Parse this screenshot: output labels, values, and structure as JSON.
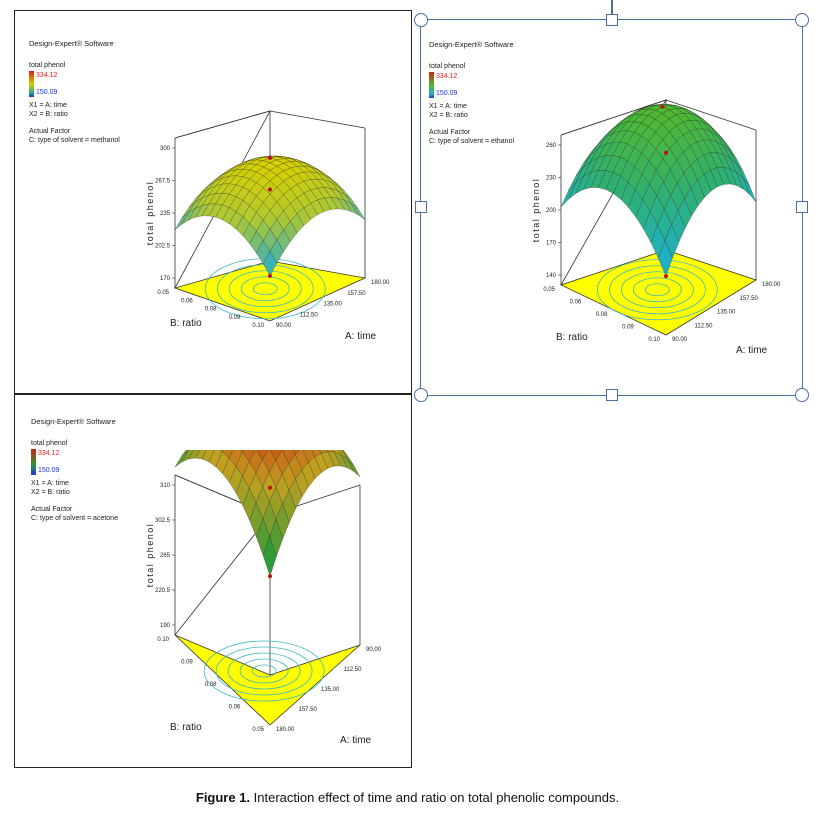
{
  "caption": {
    "label": "Figure 1.",
    "text": " Interaction effect of time and ratio on total phenolic compounds."
  },
  "charts": [
    {
      "software": "Design-Expert® Software",
      "legend_title": "total phenol",
      "legend_high": "334.12",
      "legend_low": "150.09",
      "x1": "X1 = A: time",
      "x2": "X2 = B: ratio",
      "actual_factor": "Actual Factor",
      "factor_value": "C: type of solvent = methanol",
      "zlabel": "total phenol",
      "xlabel": "A: time",
      "ylabel": "B: ratio",
      "colors": [
        "#3ab0b8",
        "#b0c830",
        "#d8d000"
      ]
    },
    {
      "software": "Design-Expert® Software",
      "legend_title": "total phenol",
      "legend_high": "334.12",
      "legend_low": "150.09",
      "x1": "X1 = A: time",
      "x2": "X2 = B: ratio",
      "actual_factor": "Actual Factor",
      "factor_value": "C: type of solvent = ethanol",
      "zlabel": "total phenol",
      "xlabel": "A: time",
      "ylabel": "B: ratio",
      "colors": [
        "#1fb0c8",
        "#30b070",
        "#50b830"
      ]
    },
    {
      "software": "Design-Expert® Software",
      "legend_title": "total phenol",
      "legend_high": "334.12",
      "legend_low": "150.09",
      "x1": "X1 = A: time",
      "x2": "X2 = B: ratio",
      "actual_factor": "Actual Factor",
      "factor_value": "C: type of solvent = acetone",
      "zlabel": "total phenol",
      "xlabel": "A: time",
      "ylabel": "B: ratio",
      "colors": [
        "#2a9a3a",
        "#c0a020",
        "#d01a10"
      ]
    }
  ],
  "chart_data": [
    {
      "type": "surface",
      "z_ticks": [
        "170",
        "202.5",
        "235",
        "267.5",
        "300"
      ],
      "x_ticks": [
        "90.00",
        "112.50",
        "135.00",
        "157.50",
        "180.00"
      ],
      "y_ticks": [
        "0.05",
        "0.06",
        "0.08",
        "0.09",
        "0.10"
      ],
      "surface": {
        "corner_low": 235,
        "peak": 300,
        "edge": 170
      }
    },
    {
      "type": "surface",
      "z_ticks": [
        "140",
        "170",
        "200",
        "230",
        "260"
      ],
      "x_ticks": [
        "90.00",
        "112.50",
        "135.00",
        "157.50",
        "180.00"
      ],
      "y_ticks": [
        "0.05",
        "0.06",
        "0.08",
        "0.09",
        "0.10"
      ],
      "surface": {
        "corner_low": 200,
        "peak": 260,
        "edge": 140
      }
    },
    {
      "type": "surface",
      "z_ticks": [
        "190",
        "220.5",
        "265",
        "302.5",
        "310"
      ],
      "x_ticks": [
        "180.00",
        "157.50",
        "135.00",
        "112.50",
        "90.00"
      ],
      "y_ticks": [
        "0.10",
        "0.09",
        "0.08",
        "0.06",
        "0.05"
      ],
      "surface": {
        "corner_low": 220,
        "peak": 310,
        "edge": 190
      }
    }
  ]
}
